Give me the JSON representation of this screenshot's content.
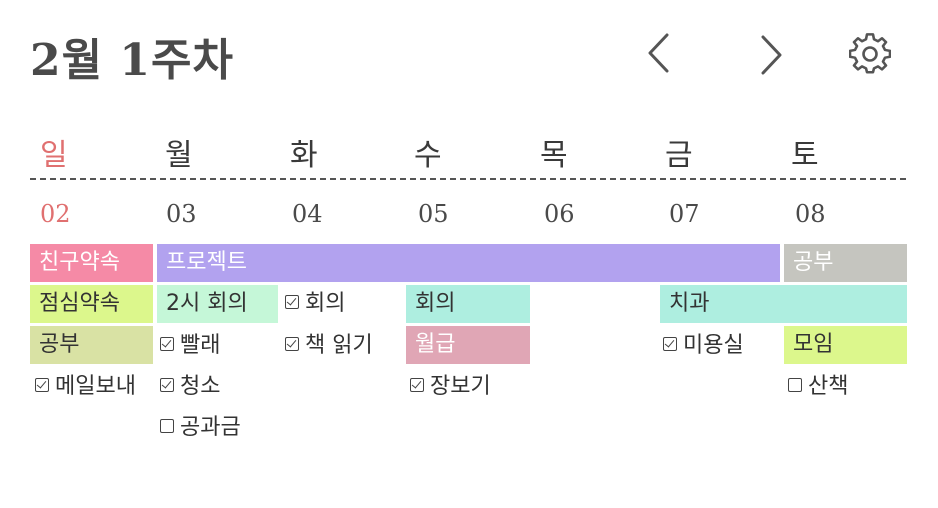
{
  "header": {
    "title": "2월 1주차",
    "prev_icon": "chevron-left-icon",
    "next_icon": "chevron-right-icon",
    "settings_icon": "gear-icon"
  },
  "week": {
    "days": [
      "일",
      "월",
      "화",
      "수",
      "목",
      "금",
      "토"
    ],
    "dates": [
      "02",
      "03",
      "04",
      "05",
      "06",
      "07",
      "08"
    ]
  },
  "colors": {
    "sunday": "#e07070",
    "pink": "#f58aa6",
    "purple": "#b2a2ef",
    "gray": "#c5c5bf",
    "lime": "#dcf78c",
    "mint": "#c5f7d8",
    "teal": "#aeeee0",
    "rose": "#e0a6b5",
    "olive": "#d9e2a4"
  },
  "events": {
    "friend_appt": "친구약속",
    "project": "프로젝트",
    "study_sat": "공부",
    "lunch_appt": "점심약속",
    "meeting_2pm": "2시 회의",
    "meeting_wed": "회의",
    "dentist": "치과",
    "study_sun": "공부",
    "payday": "월급",
    "gathering": "모임"
  },
  "tasks": {
    "meeting_tue": "회의",
    "laundry": "빨래",
    "read_book": "책 읽기",
    "salon": "미용실",
    "send_mail": "메일보내",
    "cleaning": "청소",
    "groceries": "장보기",
    "walk": "산책",
    "utilities": "공과금"
  }
}
